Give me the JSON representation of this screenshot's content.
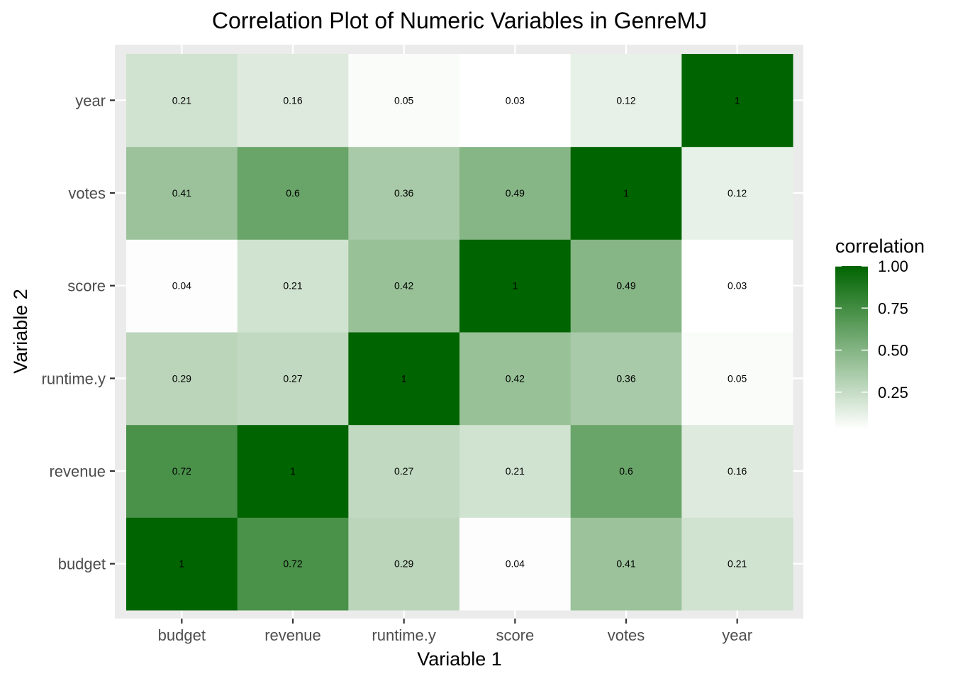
{
  "chart_data": {
    "type": "heatmap",
    "title": "Correlation Plot of Numeric Variables in GenreMJ",
    "xlabel": "Variable 1",
    "ylabel": "Variable 2",
    "x_categories": [
      "budget",
      "revenue",
      "runtime.y",
      "score",
      "votes",
      "year"
    ],
    "y_categories": [
      "budget",
      "revenue",
      "runtime.y",
      "score",
      "votes",
      "year"
    ],
    "values": [
      [
        1,
        0.72,
        0.29,
        0.04,
        0.41,
        0.21
      ],
      [
        0.72,
        1,
        0.27,
        0.21,
        0.6,
        0.16
      ],
      [
        0.29,
        0.27,
        1,
        0.42,
        0.36,
        0.05
      ],
      [
        0.04,
        0.21,
        0.42,
        1,
        0.49,
        0.03
      ],
      [
        0.41,
        0.6,
        0.36,
        0.49,
        1,
        0.12
      ],
      [
        0.21,
        0.16,
        0.05,
        0.03,
        0.12,
        1
      ]
    ],
    "color_scale": {
      "low": "#ffffff",
      "high": "#006400"
    },
    "legend": {
      "title": "correlation",
      "position": "right",
      "breaks": [
        1.0,
        0.75,
        0.5,
        0.25
      ],
      "labels": [
        "1.00",
        "0.75",
        "0.50",
        "0.25"
      ],
      "range": [
        0.03,
        1
      ]
    },
    "panel_background": "#ebebeb",
    "grid": true
  }
}
